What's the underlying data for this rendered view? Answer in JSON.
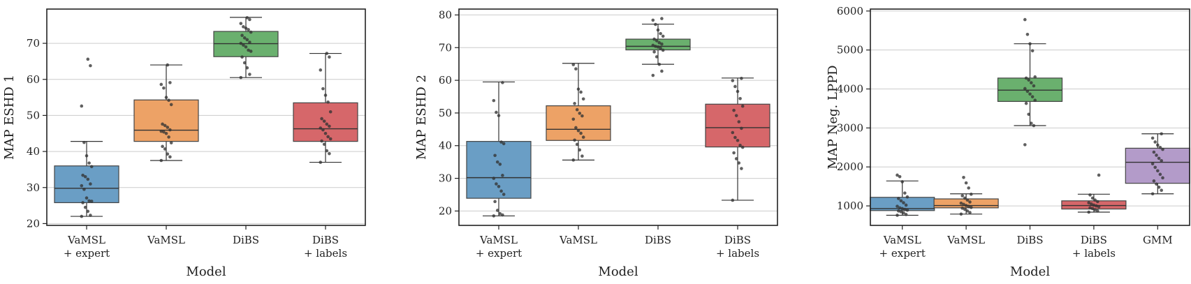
{
  "chart_data": [
    {
      "type": "box",
      "title": "",
      "xlabel": "Model",
      "ylabel": "MAP ESHD 1",
      "ylim": [
        19.5,
        79.5
      ],
      "yticks": [
        20,
        30,
        40,
        50,
        60,
        70
      ],
      "grid": "horizontal",
      "categories": [
        {
          "line1": "VaMSL",
          "line2": "+ expert"
        },
        {
          "line1": "VaMSL",
          "line2": ""
        },
        {
          "line1": "DiBS",
          "line2": ""
        },
        {
          "line1": "DiBS",
          "line2": "+ labels"
        }
      ],
      "boxes": [
        {
          "color": "#6a9ec5",
          "q1": 25.8,
          "median": 29.8,
          "q3": 36.0,
          "whisker_low": 22.0,
          "whisker_high": 42.8,
          "points": [
            22.0,
            22.3,
            23.4,
            24.5,
            25.8,
            26.2,
            26.3,
            27.1,
            29.5,
            30.5,
            31.0,
            32.3,
            33.0,
            33.4,
            35.8,
            36.8,
            38.8,
            42.5,
            52.6,
            63.8,
            65.6
          ]
        },
        {
          "color": "#eda266",
          "q1": 42.8,
          "median": 45.9,
          "q3": 54.3,
          "whisker_low": 37.5,
          "whisker_high": 64.0,
          "points": [
            37.5,
            38.5,
            39.3,
            40.7,
            41.4,
            42.4,
            44.0,
            45.0,
            45.4,
            45.6,
            46.0,
            46.7,
            47.2,
            47.6,
            53.0,
            54.2,
            55.0,
            57.6,
            58.6,
            59.1,
            64.0
          ]
        },
        {
          "color": "#6ab06e",
          "q1": 66.3,
          "median": 69.9,
          "q3": 73.3,
          "whisker_low": 60.5,
          "whisker_high": 77.2,
          "points": [
            60.5,
            61.4,
            63.2,
            64.6,
            66.2,
            67.8,
            68.1,
            69.0,
            69.5,
            70.0,
            70.3,
            71.0,
            71.5,
            72.2,
            73.1,
            73.8,
            74.2,
            74.6,
            75.5,
            76.6,
            77.1
          ]
        },
        {
          "color": "#d6676a",
          "q1": 42.8,
          "median": 46.3,
          "q3": 53.5,
          "whisker_low": 37.0,
          "whisker_high": 67.2,
          "points": [
            37.0,
            39.4,
            40.2,
            42.0,
            42.9,
            43.5,
            44.1,
            45.0,
            46.0,
            46.5,
            47.0,
            47.6,
            48.4,
            49.1,
            51.0,
            53.7,
            55.6,
            57.4,
            62.6,
            66.2,
            67.2
          ]
        }
      ]
    },
    {
      "type": "box",
      "title": "",
      "xlabel": "Model",
      "ylabel": "MAP ESHD 2",
      "ylim": [
        15.6,
        81.8
      ],
      "yticks": [
        20,
        30,
        40,
        50,
        60,
        70,
        80
      ],
      "grid": "horizontal",
      "categories": [
        {
          "line1": "VaMSL",
          "line2": "+ expert"
        },
        {
          "line1": "VaMSL",
          "line2": ""
        },
        {
          "line1": "DiBS",
          "line2": ""
        },
        {
          "line1": "DiBS",
          "line2": "+ labels"
        }
      ],
      "boxes": [
        {
          "color": "#6a9ec5",
          "q1": 23.9,
          "median": 30.2,
          "q3": 41.3,
          "whisker_low": 18.5,
          "whisker_high": 59.5,
          "points": [
            18.5,
            18.8,
            19.2,
            20.2,
            22.9,
            25.1,
            26.1,
            27.5,
            28.3,
            30.0,
            30.9,
            34.3,
            35.0,
            37.0,
            40.6,
            41.1,
            49.2,
            50.2,
            53.8,
            59.3
          ]
        },
        {
          "color": "#eda266",
          "q1": 41.6,
          "median": 45.0,
          "q3": 52.2,
          "whisker_low": 35.6,
          "whisker_high": 65.2,
          "points": [
            35.6,
            36.8,
            38.7,
            40.4,
            41.7,
            42.6,
            43.8,
            44.6,
            45.5,
            48.1,
            49.1,
            49.9,
            51.0,
            52.9,
            54.3,
            56.4,
            57.3,
            63.5,
            64.8
          ]
        },
        {
          "color": "#6ab06e",
          "q1": 69.3,
          "median": 70.4,
          "q3": 72.6,
          "whisker_low": 64.9,
          "whisker_high": 77.2,
          "points": [
            61.5,
            62.8,
            64.9,
            67.2,
            68.7,
            69.2,
            69.8,
            70.2,
            70.4,
            70.7,
            71.1,
            71.5,
            72.1,
            72.6,
            73.5,
            74.3,
            75.4,
            77.1,
            78.4,
            78.9
          ]
        },
        {
          "color": "#d6676a",
          "q1": 39.6,
          "median": 45.5,
          "q3": 52.7,
          "whisker_low": 23.3,
          "whisker_high": 60.7,
          "points": [
            23.3,
            33.0,
            34.7,
            36.0,
            37.8,
            39.5,
            40.1,
            41.6,
            42.5,
            44.0,
            45.3,
            47.3,
            49.2,
            50.8,
            52.1,
            54.4,
            56.6,
            58.1,
            59.9,
            60.6
          ]
        }
      ]
    },
    {
      "type": "box",
      "title": "",
      "xlabel": "Model",
      "ylabel": "MAP Neg. LPPD",
      "ylim": [
        500,
        6050
      ],
      "yticks": [
        1000,
        2000,
        3000,
        4000,
        5000,
        6000
      ],
      "grid": "horizontal",
      "categories": [
        {
          "line1": "VaMSL",
          "line2": "+ expert"
        },
        {
          "line1": "VaMSL",
          "line2": ""
        },
        {
          "line1": "DiBS",
          "line2": ""
        },
        {
          "line1": "DiBS",
          "line2": "+ labels"
        },
        {
          "line1": "GMM",
          "line2": ""
        }
      ],
      "boxes": [
        {
          "color": "#6a9ec5",
          "q1": 880,
          "median": 930,
          "q3": 1220,
          "whisker_low": 760,
          "whisker_high": 1640,
          "points": [
            760,
            780,
            820,
            850,
            870,
            890,
            910,
            930,
            950,
            990,
            1020,
            1080,
            1130,
            1190,
            1230,
            1330,
            1620,
            1750,
            1790
          ]
        },
        {
          "color": "#eda266",
          "q1": 950,
          "median": 1010,
          "q3": 1180,
          "whisker_low": 790,
          "whisker_high": 1310,
          "points": [
            790,
            830,
            870,
            910,
            940,
            960,
            990,
            1010,
            1040,
            1070,
            1100,
            1150,
            1200,
            1260,
            1300,
            1460,
            1590,
            1730
          ]
        },
        {
          "color": "#6ab06e",
          "q1": 3680,
          "median": 3970,
          "q3": 4280,
          "whisker_low": 3060,
          "whisker_high": 5160,
          "points": [
            2570,
            3060,
            3120,
            3350,
            3630,
            3710,
            3800,
            3870,
            3940,
            4010,
            4080,
            4160,
            4230,
            4280,
            4310,
            4980,
            5160,
            5400,
            5780
          ]
        },
        {
          "color": "#d6676a",
          "q1": 920,
          "median": 1010,
          "q3": 1130,
          "whisker_low": 840,
          "whisker_high": 1300,
          "points": [
            840,
            870,
            900,
            930,
            950,
            980,
            1000,
            1020,
            1050,
            1080,
            1110,
            1150,
            1200,
            1280,
            1790
          ]
        },
        {
          "color": "#b39bc9",
          "q1": 1580,
          "median": 2120,
          "q3": 2480,
          "whisker_low": 1310,
          "whisker_high": 2850,
          "points": [
            1310,
            1400,
            1480,
            1560,
            1640,
            1720,
            1810,
            1900,
            1990,
            2080,
            2160,
            2220,
            2300,
            2380,
            2450,
            2500,
            2560,
            2640,
            2740,
            2850
          ]
        }
      ]
    }
  ]
}
